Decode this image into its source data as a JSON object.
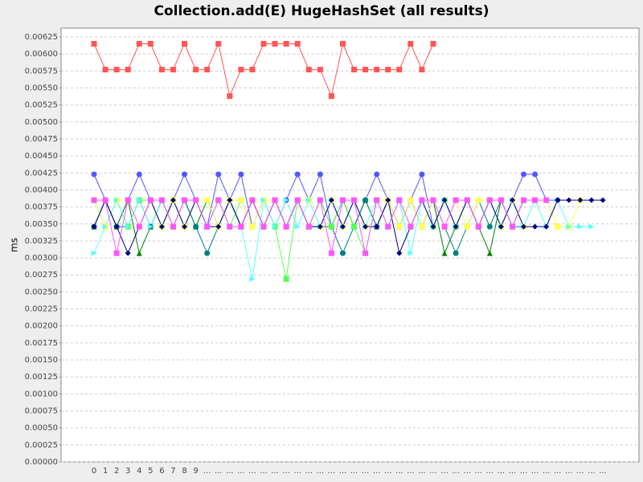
{
  "chart_data": {
    "type": "line",
    "title": "Collection.add(E) HugeHashSet (all results)",
    "y_label": "ms",
    "categories": [
      "0",
      "1",
      "2",
      "3",
      "4",
      "5",
      "6",
      "7",
      "8",
      "9",
      "...",
      "...",
      "...",
      "...",
      "...",
      "...",
      "...",
      "...",
      "...",
      "...",
      "...",
      "...",
      "...",
      "...",
      "...",
      "...",
      "...",
      "...",
      "...",
      "...",
      "...",
      "...",
      "...",
      "...",
      "...",
      "...",
      "...",
      "...",
      "...",
      "...",
      "...",
      "...",
      "...",
      "...",
      "...",
      "..."
    ],
    "ylim": [
      0,
      0.00638
    ],
    "yticks": [
      {
        "value": 0,
        "label": "0.00000"
      },
      {
        "value": 0.00025,
        "label": "0.00025"
      },
      {
        "value": 0.0005,
        "label": "0.00050"
      },
      {
        "value": 0.00075,
        "label": "0.00075"
      },
      {
        "value": 0.001,
        "label": "0.00100"
      },
      {
        "value": 0.00125,
        "label": "0.00125"
      },
      {
        "value": 0.0015,
        "label": "0.00150"
      },
      {
        "value": 0.00175,
        "label": "0.00175"
      },
      {
        "value": 0.002,
        "label": "0.00200"
      },
      {
        "value": 0.00225,
        "label": "0.00225"
      },
      {
        "value": 0.0025,
        "label": "0.00250"
      },
      {
        "value": 0.00275,
        "label": "0.00275"
      },
      {
        "value": 0.003,
        "label": "0.00300"
      },
      {
        "value": 0.00325,
        "label": "0.00325"
      },
      {
        "value": 0.0035,
        "label": "0.00350"
      },
      {
        "value": 0.00375,
        "label": "0.00375"
      },
      {
        "value": 0.004,
        "label": "0.00400"
      },
      {
        "value": 0.00425,
        "label": "0.00425"
      },
      {
        "value": 0.0045,
        "label": "0.00450"
      },
      {
        "value": 0.00475,
        "label": "0.00475"
      },
      {
        "value": 0.005,
        "label": "0.00500"
      },
      {
        "value": 0.00525,
        "label": "0.00525"
      },
      {
        "value": 0.0055,
        "label": "0.00550"
      },
      {
        "value": 0.00575,
        "label": "0.00575"
      },
      {
        "value": 0.006,
        "label": "0.00600"
      },
      {
        "value": 0.00625,
        "label": "0.00625"
      }
    ],
    "grid": true,
    "series": [
      {
        "color": "#ff5555",
        "marker": "square",
        "values": [
          0.00615,
          0.00577,
          0.00577,
          0.00577,
          0.00615,
          0.00615,
          0.00577,
          0.00577,
          0.00615,
          0.00577,
          0.00577,
          0.00615,
          0.00538,
          0.00577,
          0.00577,
          0.00615,
          0.00615,
          0.00615,
          0.00615,
          0.00577,
          0.00577,
          0.00538,
          0.00615,
          0.00577,
          0.00577,
          0.00577,
          0.00577,
          0.00577,
          0.00615,
          0.00577,
          0.00615,
          null,
          null,
          null,
          null,
          null,
          null,
          null,
          null,
          null,
          null,
          null,
          null,
          null,
          null,
          null
        ]
      },
      {
        "color": "#5555ff",
        "marker": "circle",
        "values": [
          0.00423,
          0.00385,
          0.00346,
          0.00385,
          0.00423,
          0.00385,
          0.00346,
          0.00385,
          0.00423,
          0.00385,
          0.00346,
          0.00423,
          0.00385,
          0.00423,
          0.00346,
          0.00385,
          0.00346,
          0.00385,
          0.00423,
          0.00385,
          0.00423,
          0.00346,
          0.00385,
          0.00346,
          0.00385,
          0.00423,
          0.00385,
          0.00346,
          0.00385,
          0.00423,
          0.00346,
          0.00385,
          0.00346,
          0.00385,
          0.00346,
          0.00385,
          0.00346,
          0.00385,
          0.00423,
          0.00423,
          0.00385,
          0.00385,
          null,
          null,
          null,
          null
        ]
      },
      {
        "color": "#008000",
        "marker": "triangle",
        "values": [
          0.00346,
          0.00385,
          0.00346,
          0.00385,
          0.00307,
          0.00346,
          0.00385,
          0.00346,
          0.00385,
          0.00346,
          0.00385,
          0.00346,
          0.00385,
          0.00346,
          0.00385,
          0.00346,
          0.00385,
          0.00346,
          0.00385,
          0.00346,
          0.00346,
          0.00346,
          0.00385,
          0.00346,
          0.00385,
          0.00346,
          0.00385,
          0.00346,
          0.00385,
          0.00346,
          0.00385,
          0.00307,
          0.00346,
          0.00385,
          0.00346,
          0.00307,
          0.00385,
          0.00346,
          0.00385,
          null,
          null,
          null,
          null,
          null,
          null,
          null
        ]
      },
      {
        "color": "#008080",
        "marker": "circle",
        "values": [
          0.00346,
          0.00385,
          0.00346,
          0.00346,
          0.00385,
          0.00346,
          0.00385,
          0.00346,
          0.00385,
          0.00346,
          0.00307,
          0.00346,
          0.00385,
          0.00346,
          0.00385,
          0.00346,
          0.00385,
          0.00346,
          0.00385,
          0.00346,
          0.00385,
          0.00346,
          0.00307,
          0.00346,
          0.00385,
          0.00346,
          0.00385,
          0.00346,
          0.00385,
          0.00346,
          0.00385,
          0.00346,
          0.00307,
          0.00346,
          0.00385,
          0.00346,
          0.00385,
          0.00346,
          0.00346,
          null,
          null,
          null,
          null,
          null,
          null,
          null
        ]
      },
      {
        "color": "#55ff55",
        "marker": "square",
        "values": [
          0.00385,
          0.00346,
          0.00385,
          0.00346,
          0.00385,
          0.00385,
          0.00346,
          0.00385,
          0.00346,
          0.00385,
          0.00346,
          0.00385,
          0.00346,
          0.00385,
          0.00346,
          0.00385,
          0.00346,
          0.00269,
          0.00385,
          0.00346,
          0.00385,
          0.00346,
          0.00385,
          0.00346,
          0.00307,
          0.00385,
          0.00346,
          0.00385,
          0.00346,
          0.00385,
          0.00346,
          0.00385,
          0.00346,
          0.00385,
          0.00346,
          0.00385,
          null,
          null,
          null,
          null,
          null,
          null,
          null,
          null,
          null,
          null
        ]
      },
      {
        "color": "#ffff55",
        "marker": "square",
        "values": [
          0.00385,
          0.00346,
          0.00385,
          0.00385,
          0.00346,
          0.00385,
          0.00346,
          0.00385,
          0.00346,
          0.00385,
          0.00385,
          0.00346,
          0.00385,
          0.00385,
          0.00346,
          0.00385,
          0.00385,
          0.00346,
          0.00385,
          0.00385,
          0.00346,
          0.00385,
          0.00346,
          0.00385,
          0.00346,
          0.00385,
          0.00385,
          0.00346,
          0.00385,
          0.00346,
          0.00385,
          0.00346,
          0.00385,
          0.00346,
          0.00385,
          0.00385,
          0.00346,
          0.00385,
          0.00346,
          0.00385,
          0.00385,
          0.00346,
          0.00346,
          0.00385,
          null,
          null
        ]
      },
      {
        "color": "#55ffff",
        "marker": "triangle-right",
        "values": [
          0.00307,
          0.00346,
          0.00385,
          0.00346,
          0.00385,
          0.00346,
          0.00385,
          0.00346,
          0.00385,
          0.00385,
          0.00346,
          0.00385,
          0.00346,
          0.00346,
          0.00269,
          0.00385,
          0.00346,
          0.00385,
          0.00346,
          0.00385,
          0.00346,
          0.00385,
          0.00346,
          0.00385,
          0.00346,
          0.00385,
          0.00346,
          0.00385,
          0.00307,
          0.00385,
          0.00346,
          0.00385,
          0.00346,
          0.00385,
          0.00346,
          0.00385,
          0.00346,
          0.00385,
          0.00346,
          0.00385,
          0.00346,
          0.00385,
          0.00346,
          0.00346,
          0.00346,
          null
        ]
      },
      {
        "color": "#000080",
        "marker": "diamond",
        "values": [
          0.00346,
          0.00385,
          0.00346,
          0.00307,
          0.00346,
          0.00385,
          0.00346,
          0.00385,
          0.00346,
          0.00385,
          0.00346,
          0.00346,
          0.00385,
          0.00346,
          0.00385,
          0.00346,
          0.00385,
          0.00346,
          0.00385,
          0.00346,
          0.00346,
          0.00385,
          0.00346,
          0.00385,
          0.00346,
          0.00346,
          0.00385,
          0.00307,
          0.00346,
          0.00385,
          0.00346,
          0.00385,
          0.00346,
          0.00385,
          0.00346,
          0.00385,
          0.00346,
          0.00385,
          0.00346,
          0.00346,
          0.00346,
          0.00385,
          0.00385,
          0.00385,
          0.00385,
          0.00385
        ]
      },
      {
        "color": "#ff55ff",
        "marker": "square",
        "values": [
          0.00385,
          0.00385,
          0.00307,
          0.00385,
          0.00346,
          0.00385,
          0.00385,
          0.00346,
          0.00385,
          0.00385,
          0.00346,
          0.00385,
          0.00346,
          0.00346,
          0.00385,
          0.00346,
          0.00385,
          0.00346,
          0.00385,
          0.00346,
          0.00385,
          0.00307,
          0.00385,
          0.00385,
          0.00307,
          0.00385,
          0.00346,
          0.00385,
          0.00346,
          0.00385,
          0.00385,
          0.00346,
          0.00385,
          0.00385,
          0.00346,
          0.00385,
          0.00385,
          0.00346,
          0.00385,
          0.00385,
          0.00385,
          null,
          null,
          null,
          null,
          null
        ]
      }
    ]
  }
}
